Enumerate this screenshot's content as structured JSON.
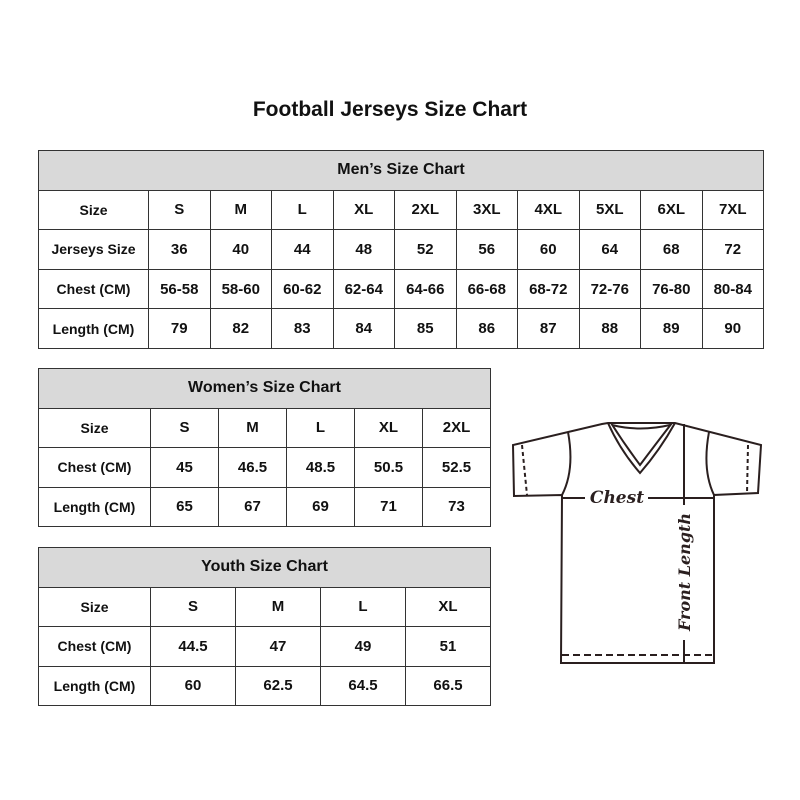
{
  "title": "Football Jerseys Size Chart",
  "men": {
    "title": "Men’s Size Chart",
    "rows": [
      [
        "Size",
        "S",
        "M",
        "L",
        "XL",
        "2XL",
        "3XL",
        "4XL",
        "5XL",
        "6XL",
        "7XL"
      ],
      [
        "Jerseys Size",
        "36",
        "40",
        "44",
        "48",
        "52",
        "56",
        "60",
        "64",
        "68",
        "72"
      ],
      [
        "Chest (CM)",
        "56-58",
        "58-60",
        "60-62",
        "62-64",
        "64-66",
        "66-68",
        "68-72",
        "72-76",
        "76-80",
        "80-84"
      ],
      [
        "Length (CM)",
        "79",
        "82",
        "83",
        "84",
        "85",
        "86",
        "87",
        "88",
        "89",
        "90"
      ]
    ]
  },
  "women": {
    "title": "Women’s Size Chart",
    "rows": [
      [
        "Size",
        "S",
        "M",
        "L",
        "XL",
        "2XL"
      ],
      [
        "Chest (CM)",
        "45",
        "46.5",
        "48.5",
        "50.5",
        "52.5"
      ],
      [
        "Length (CM)",
        "65",
        "67",
        "69",
        "71",
        "73"
      ]
    ]
  },
  "youth": {
    "title": "Youth Size Chart",
    "rows": [
      [
        "Size",
        "S",
        "M",
        "L",
        "XL"
      ],
      [
        "Chest (CM)",
        "44.5",
        "47",
        "49",
        "51"
      ],
      [
        "Length (CM)",
        "60",
        "62.5",
        "64.5",
        "66.5"
      ]
    ]
  },
  "diagram": {
    "chest_label": "Chest",
    "length_label": "Front Length"
  },
  "colors": {
    "header_bg": "#d9d9d9",
    "border": "#333333"
  }
}
